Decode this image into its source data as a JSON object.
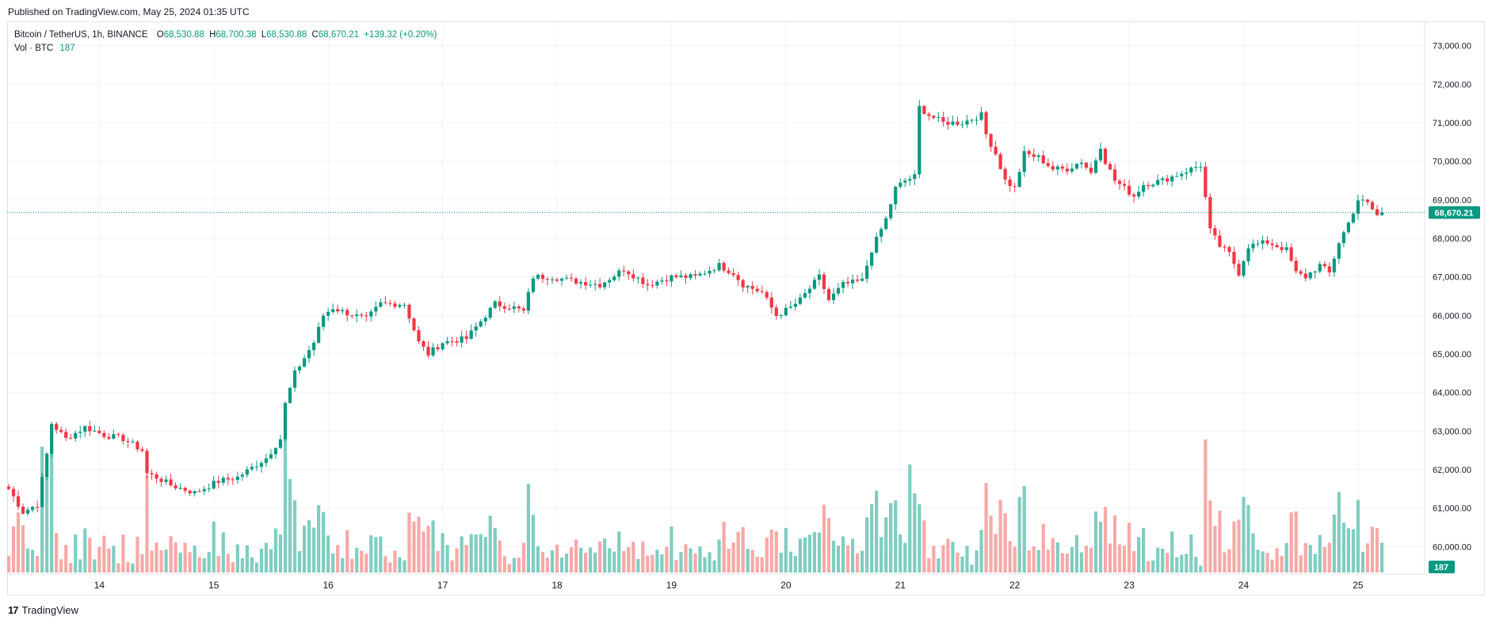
{
  "header": {
    "published": "Published on TradingView.com, May 25, 2024 01:35 UTC"
  },
  "legend": {
    "symbol": "Bitcoin / TetherUS, 1h, BINANCE",
    "o_label": "O",
    "o_value": "68,530.88",
    "h_label": "H",
    "h_value": "68,700.38",
    "l_label": "L",
    "l_value": "68,530.88",
    "c_label": "C",
    "c_value": "68,670.21",
    "change": "+139.32 (+0.20%)",
    "vol_label": "Vol · BTC",
    "vol_value": "187"
  },
  "footer": {
    "logo": "17",
    "brand": "TradingView"
  },
  "colors": {
    "up": "#089981",
    "down": "#f23645",
    "vol_up": "#7fcdc0",
    "vol_down": "#f7a9a7",
    "grid": "#f0f3fa",
    "axis_text": "#131722"
  },
  "chart_data": {
    "type": "candlestick",
    "price_axis": {
      "min": 59700,
      "max": 73300,
      "ticks": [
        60000,
        61000,
        62000,
        63000,
        64000,
        65000,
        66000,
        67000,
        68000,
        69000,
        70000,
        71000,
        72000,
        73000
      ],
      "tick_labels": [
        "60,000.00",
        "61,000.00",
        "62,000.00",
        "63,000.00",
        "64,000.00",
        "65,000.00",
        "66,000.00",
        "67,000.00",
        "68,000.00",
        "69,000.00",
        "70,000.00",
        "71,000.00",
        "72,000.00",
        "73,000.00"
      ]
    },
    "time_axis": {
      "labels": [
        "14",
        "15",
        "16",
        "17",
        "18",
        "19",
        "20",
        "21",
        "22",
        "23",
        "24",
        "25"
      ],
      "label_positions_hour_index": [
        19,
        43,
        67,
        91,
        115,
        139,
        163,
        187,
        211,
        235,
        259,
        283
      ],
      "total_candles": 289
    },
    "last_price": {
      "value": 68670.21,
      "label": "68,670.21"
    },
    "last_volume": {
      "value": 187,
      "label": "187"
    },
    "volume_scale_max": 3300,
    "ohlc_keyframes": [
      [
        0,
        61500
      ],
      [
        3,
        60900
      ],
      [
        6,
        61100
      ],
      [
        8,
        62400
      ],
      [
        9,
        63200
      ],
      [
        12,
        62800
      ],
      [
        16,
        63100
      ],
      [
        20,
        62900
      ],
      [
        24,
        62800
      ],
      [
        28,
        62500
      ],
      [
        29,
        61900
      ],
      [
        31,
        61800
      ],
      [
        34,
        61600
      ],
      [
        39,
        61400
      ],
      [
        44,
        61700
      ],
      [
        48,
        61800
      ],
      [
        54,
        62300
      ],
      [
        57,
        62800
      ],
      [
        58,
        63700
      ],
      [
        60,
        64500
      ],
      [
        64,
        65300
      ],
      [
        66,
        66000
      ],
      [
        68,
        66200
      ],
      [
        70,
        66100
      ],
      [
        75,
        65900
      ],
      [
        78,
        66300
      ],
      [
        83,
        66300
      ],
      [
        86,
        65300
      ],
      [
        88,
        65000
      ],
      [
        91,
        65300
      ],
      [
        96,
        65400
      ],
      [
        102,
        66300
      ],
      [
        106,
        66200
      ],
      [
        108,
        66100
      ],
      [
        110,
        67000
      ],
      [
        114,
        67000
      ],
      [
        118,
        66900
      ],
      [
        124,
        66800
      ],
      [
        129,
        67200
      ],
      [
        134,
        66800
      ],
      [
        139,
        67000
      ],
      [
        144,
        67000
      ],
      [
        149,
        67300
      ],
      [
        152,
        67100
      ],
      [
        154,
        66800
      ],
      [
        158,
        66600
      ],
      [
        161,
        66000
      ],
      [
        164,
        66200
      ],
      [
        166,
        66400
      ],
      [
        170,
        67000
      ],
      [
        172,
        66400
      ],
      [
        175,
        66800
      ],
      [
        179,
        66900
      ],
      [
        181,
        67700
      ],
      [
        184,
        68500
      ],
      [
        186,
        69300
      ],
      [
        188,
        69500
      ],
      [
        190,
        69600
      ],
      [
        191,
        71400
      ],
      [
        193,
        71200
      ],
      [
        196,
        71000
      ],
      [
        200,
        71000
      ],
      [
        204,
        71200
      ],
      [
        205,
        70700
      ],
      [
        207,
        70200
      ],
      [
        209,
        69500
      ],
      [
        211,
        69300
      ],
      [
        213,
        70200
      ],
      [
        216,
        70100
      ],
      [
        219,
        69800
      ],
      [
        222,
        69800
      ],
      [
        225,
        70000
      ],
      [
        227,
        69700
      ],
      [
        229,
        70400
      ],
      [
        230,
        70000
      ],
      [
        232,
        69500
      ],
      [
        236,
        69100
      ],
      [
        238,
        69400
      ],
      [
        242,
        69500
      ],
      [
        246,
        69700
      ],
      [
        250,
        69900
      ],
      [
        252,
        68200
      ],
      [
        254,
        67800
      ],
      [
        256,
        67600
      ],
      [
        258,
        67100
      ],
      [
        260,
        67800
      ],
      [
        264,
        67900
      ],
      [
        268,
        67700
      ],
      [
        270,
        67100
      ],
      [
        272,
        67000
      ],
      [
        275,
        67300
      ],
      [
        277,
        67100
      ],
      [
        279,
        67900
      ],
      [
        281,
        68400
      ],
      [
        283,
        69000
      ],
      [
        285,
        68900
      ],
      [
        287,
        68600
      ],
      [
        288,
        68670
      ]
    ]
  }
}
